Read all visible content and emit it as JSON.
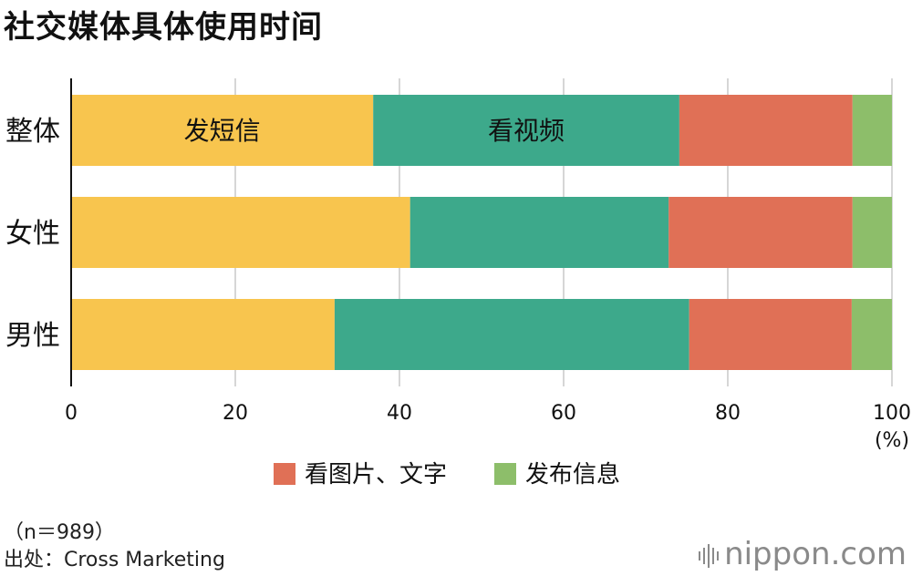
{
  "title": "社交媒体具体使用时间",
  "chart_data": {
    "type": "bar",
    "orientation": "horizontal",
    "stacked": true,
    "categories": [
      "整体",
      "女性",
      "男性"
    ],
    "series": [
      {
        "name": "发短信",
        "values": [
          36.8,
          41.3,
          32.1
        ],
        "color": "#F8C54E"
      },
      {
        "name": "看视频",
        "values": [
          37.3,
          31.5,
          43.2
        ],
        "color": "#3DA98B"
      },
      {
        "name": "看图片、文字",
        "values": [
          21.1,
          22.4,
          19.8
        ],
        "color": "#E07056"
      },
      {
        "name": "发布信息",
        "values": [
          4.8,
          4.8,
          4.9
        ],
        "color": "#8DBE6A"
      }
    ],
    "xlim": [
      0,
      100
    ],
    "xticks": [
      0,
      20,
      40,
      60,
      80,
      100
    ],
    "xunit": "(%)",
    "grid": true,
    "inline_labels": [
      "发短信",
      "看视频"
    ],
    "legend": {
      "position": "bottom",
      "entries": [
        "看图片、文字",
        "发布信息"
      ]
    }
  },
  "footer": {
    "n": "（n＝989）",
    "source": "出处：Cross Marketing"
  },
  "brand": "nippon.com"
}
